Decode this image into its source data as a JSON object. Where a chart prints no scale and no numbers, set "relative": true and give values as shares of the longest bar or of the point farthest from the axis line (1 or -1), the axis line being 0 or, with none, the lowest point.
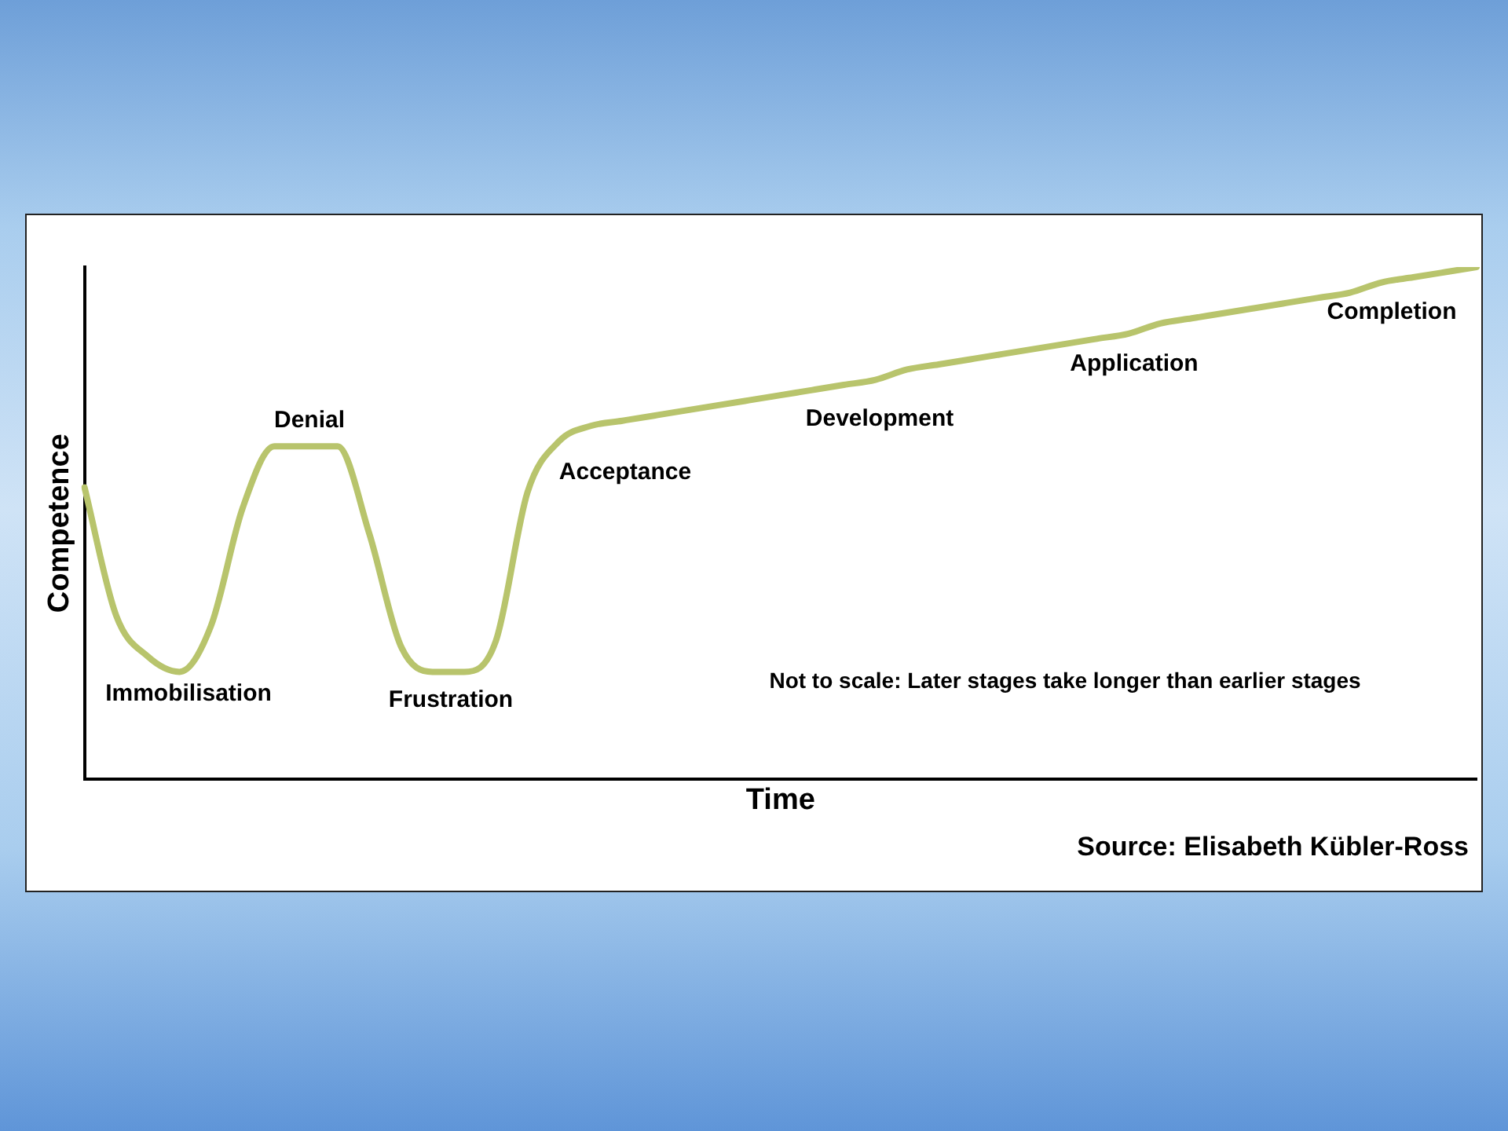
{
  "chart_data": {
    "type": "line",
    "relative": true,
    "xlabel": "Time",
    "ylabel": "Competence",
    "categories": [
      null,
      null,
      null,
      null,
      null,
      null,
      null,
      null,
      null,
      null,
      null,
      null,
      null,
      null,
      null,
      null,
      null,
      null,
      null,
      null,
      null,
      null,
      null,
      null,
      null,
      null,
      null,
      null,
      null,
      null,
      null,
      null,
      null,
      null,
      null,
      null,
      null,
      null,
      null,
      null,
      null,
      null,
      null,
      null,
      null
    ],
    "series": [
      {
        "color": "#b8c46c",
        "values": [
          0.57,
          0.32,
          0.24,
          0.21,
          0.3,
          0.53,
          0.65,
          0.65,
          0.65,
          0.48,
          0.26,
          0.21,
          0.21,
          0.27,
          0.56,
          0.66,
          0.69,
          0.7,
          0.71,
          0.72,
          0.73,
          0.74,
          0.75,
          0.76,
          0.77,
          0.78,
          0.8,
          0.81,
          0.82,
          0.83,
          0.84,
          0.85,
          0.86,
          0.87,
          0.89,
          0.9,
          0.91,
          0.92,
          0.93,
          0.94,
          0.95,
          0.97,
          0.98,
          0.99,
          1.0
        ]
      }
    ],
    "annotations": [
      "Immobilisation",
      "Denial",
      "Frustration",
      "Acceptance",
      "Development",
      "Application",
      "Completion",
      "Not to scale: Later stages take longer than earlier stages",
      "Source: Elisabeth Kübler-Ross"
    ],
    "marker": "none",
    "line_style": "solid",
    "grid": false,
    "legend": false
  }
}
